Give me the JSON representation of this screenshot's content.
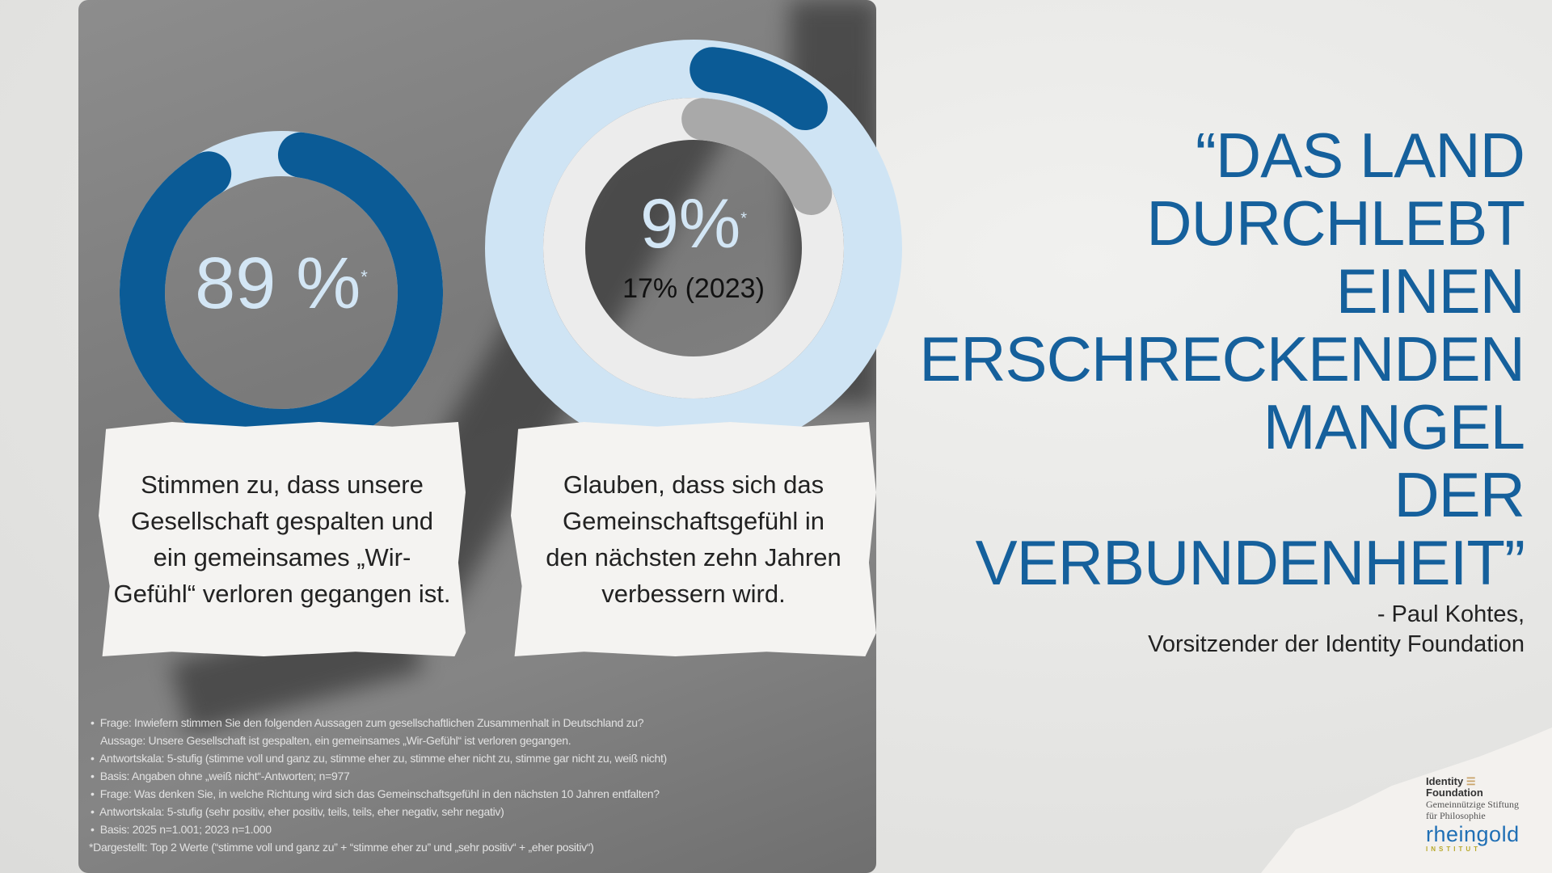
{
  "donut1": {
    "value_percent": 89,
    "label": "89 %",
    "asterisk": "*",
    "text": "Stimmen zu, dass unsere Gesellschaft gespalten und ein gemeinsames „Wir-Gefühl“ verloren gegangen ist."
  },
  "donut2": {
    "value_percent": 9,
    "previous_percent": 17,
    "label": "9%",
    "asterisk": "*",
    "previous_label": "17% (2023)",
    "text": "Glauben, dass sich das Gemeinschaftsgefühl in den nächsten zehn Jahren verbessern wird."
  },
  "colors": {
    "accent": "#0b5b96",
    "track": "#cfe4f4",
    "gray_arc": "#a9a9a9",
    "gray_track": "#ececec",
    "quote": "#15609c"
  },
  "quote": {
    "lines": [
      "“DAS LAND",
      "DURCHLEBT",
      "EINEN",
      "ERSCHRECKENDEN",
      "MANGEL",
      "DER",
      "VERBUNDENHEIT”"
    ],
    "author": "- Paul Kohtes,",
    "author_role": "Vorsitzender der Identity Foundation"
  },
  "footnotes": [
    "Frage: Inwiefern stimmen Sie den folgenden Aussagen zum gesellschaftlichen Zusammenhalt in Deutschland zu?",
    "Aussage: Unsere Gesellschaft ist gespalten, ein gemeinsames „Wir-Gefühl“ ist verloren gegangen.",
    "Antwortskala: 5-stufig (stimme voll und ganz zu, stimme eher zu, stimme eher nicht zu, stimme gar nicht zu, weiß nicht)",
    "Basis: Angaben ohne „weiß nicht“-Antworten; n=977",
    "Frage: Was denken Sie, in welche Richtung wird sich das Gemeinschaftsgefühl in den nächsten 10 Jahren entfalten?",
    "Antwortskala: 5-stufig (sehr positiv, eher positiv, teils, teils, eher negativ, sehr negativ)",
    "Basis: 2025 n=1.001; 2023 n=1.000",
    "*Dargestellt: Top 2 Werte (“stimme voll und ganz zu” + “stimme eher zu” und „sehr positiv“ + „eher positiv“)"
  ],
  "logos": {
    "identity_line1": "Identity",
    "identity_line2": "Foundation",
    "identity_sub1": "Gemeinnützige Stiftung",
    "identity_sub2": "für Philosophie",
    "rheingold": "rheingold",
    "rheingold_sub": "INSTITUT"
  }
}
